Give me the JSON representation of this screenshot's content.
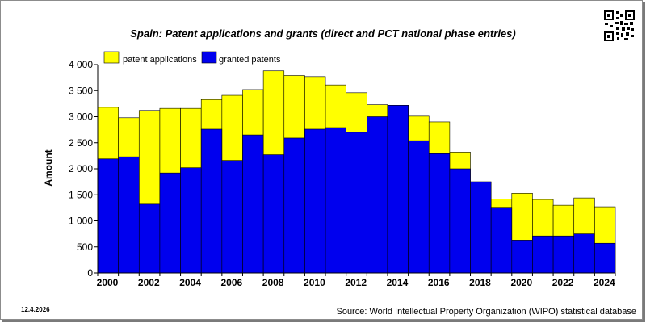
{
  "date_stamp": "12.4.2026",
  "source": "Source: World Intellectual Property Organization (WIPO) statistical database",
  "qr_icon": "qr-code-icon",
  "colors": {
    "applications": "#ffff00",
    "granted": "#0000ee",
    "axis": "#000000",
    "background": "#ffffff"
  },
  "chart_data": {
    "type": "bar",
    "stacking": "overlay",
    "title": "Spain: Patent applications and grants (direct and PCT national phase entries)",
    "ylabel": "Amount",
    "xlabel": "",
    "ylim": [
      0,
      4000
    ],
    "y_ticks": [
      "0",
      "500",
      "1 000",
      "1 500",
      "2 000",
      "2 500",
      "3 000",
      "3 500",
      "4 000"
    ],
    "x_tick_labels": [
      "2000",
      "2002",
      "2004",
      "2006",
      "2008",
      "2010",
      "2012",
      "2014",
      "2016",
      "2018",
      "2020",
      "2022",
      "2024"
    ],
    "categories": [
      "2000",
      "2001",
      "2002",
      "2003",
      "2004",
      "2005",
      "2006",
      "2007",
      "2008",
      "2009",
      "2010",
      "2011",
      "2012",
      "2013",
      "2014",
      "2015",
      "2016",
      "2017",
      "2018",
      "2019",
      "2020",
      "2021",
      "2022",
      "2023",
      "2024"
    ],
    "legend": {
      "placement": "top-left"
    },
    "series": [
      {
        "name": "patent applications",
        "values": [
          3180,
          2980,
          3120,
          3160,
          3160,
          3330,
          3410,
          3520,
          3880,
          3790,
          3770,
          3610,
          3460,
          3230,
          3220,
          3010,
          2900,
          2320,
          1750,
          1420,
          1530,
          1410,
          1300,
          1440,
          1270
        ]
      },
      {
        "name": "granted patents",
        "values": [
          2190,
          2230,
          1320,
          1920,
          2020,
          2760,
          2160,
          2650,
          2270,
          2590,
          2760,
          2790,
          2700,
          3000,
          3220,
          2540,
          2290,
          2000,
          1750,
          1260,
          630,
          710,
          710,
          750,
          570
        ]
      }
    ],
    "grid": false
  }
}
